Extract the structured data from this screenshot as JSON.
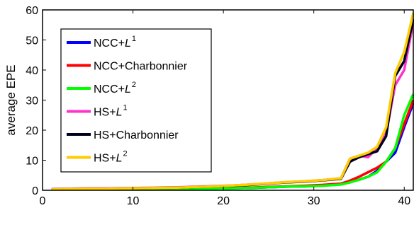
{
  "chart_data": {
    "type": "line",
    "title": "",
    "xlabel": "",
    "ylabel": "average EPE",
    "xlim": [
      0,
      41
    ],
    "ylim": [
      0,
      60
    ],
    "xticks": [
      0,
      10,
      20,
      30,
      40
    ],
    "yticks": [
      0,
      10,
      20,
      30,
      40,
      50,
      60
    ],
    "x_tick_labels": [
      "0",
      "10",
      "20",
      "30",
      "40"
    ],
    "y_tick_labels": [
      "0",
      "10",
      "20",
      "30",
      "40",
      "50",
      "60"
    ],
    "grid": false,
    "legend_position": "left",
    "series": [
      {
        "name": "NCC+L",
        "name_sup": "1",
        "name_italic": "L",
        "color": "#0000ff",
        "x": [
          1,
          3,
          5,
          7,
          9,
          11,
          13,
          15,
          17,
          19,
          21,
          23,
          25,
          27,
          29,
          31,
          33,
          34,
          35,
          36,
          37,
          38,
          39,
          40,
          41
        ],
        "y": [
          0.3,
          0.3,
          0.3,
          0.3,
          0.4,
          0.4,
          0.5,
          0.5,
          0.6,
          0.6,
          0.7,
          0.8,
          1.0,
          1.2,
          1.3,
          1.6,
          2.0,
          2.8,
          3.5,
          4.5,
          6.5,
          9.5,
          12.5,
          21,
          29
        ]
      },
      {
        "name": "NCC+Charbonnier",
        "name_sup": "",
        "name_italic": "",
        "color": "#ff0000",
        "x": [
          1,
          3,
          5,
          7,
          9,
          11,
          13,
          15,
          17,
          19,
          21,
          23,
          25,
          27,
          29,
          31,
          33,
          34,
          35,
          36,
          37,
          38,
          39,
          40,
          41
        ],
        "y": [
          0.3,
          0.3,
          0.3,
          0.3,
          0.4,
          0.4,
          0.5,
          0.5,
          0.6,
          0.7,
          0.8,
          0.9,
          1.1,
          1.3,
          1.5,
          1.8,
          2.2,
          3.2,
          4.5,
          6.0,
          7.5,
          9.5,
          14,
          22,
          30
        ]
      },
      {
        "name": "NCC+L",
        "name_sup": "2",
        "name_italic": "L",
        "color": "#00ff00",
        "x": [
          1,
          3,
          5,
          7,
          9,
          11,
          13,
          15,
          17,
          19,
          21,
          23,
          25,
          27,
          29,
          31,
          33,
          34,
          35,
          36,
          37,
          38,
          39,
          40,
          41
        ],
        "y": [
          0.3,
          0.3,
          0.3,
          0.3,
          0.4,
          0.4,
          0.5,
          0.5,
          0.6,
          0.6,
          0.7,
          0.8,
          1.0,
          1.2,
          1.3,
          1.5,
          1.9,
          2.6,
          3.5,
          4.5,
          6.0,
          9.5,
          14,
          25,
          32
        ]
      },
      {
        "name": "HS+L",
        "name_sup": "1",
        "name_italic": "L",
        "color": "#ff33cc",
        "x": [
          1,
          3,
          5,
          7,
          9,
          11,
          13,
          15,
          17,
          19,
          21,
          23,
          25,
          27,
          29,
          31,
          33,
          34,
          35,
          36,
          37,
          38,
          39,
          40,
          41
        ],
        "y": [
          0.4,
          0.5,
          0.6,
          0.6,
          0.7,
          0.8,
          0.9,
          1.0,
          1.2,
          1.4,
          1.6,
          1.9,
          2.3,
          2.7,
          3.0,
          3.4,
          4.0,
          10.5,
          11.5,
          11,
          14,
          19,
          35,
          40,
          56
        ]
      },
      {
        "name": "HS+Charbonnier",
        "name_sup": "",
        "name_italic": "",
        "color": "#000022",
        "x": [
          1,
          3,
          5,
          7,
          9,
          11,
          13,
          15,
          17,
          19,
          21,
          23,
          25,
          27,
          29,
          31,
          33,
          34,
          35,
          36,
          37,
          38,
          39,
          40,
          41
        ],
        "y": [
          0.3,
          0.4,
          0.5,
          0.5,
          0.6,
          0.7,
          0.8,
          0.9,
          1.1,
          1.3,
          1.5,
          1.8,
          2.2,
          2.6,
          2.9,
          3.3,
          3.8,
          9.5,
          11,
          12,
          13,
          18,
          38,
          43,
          57
        ]
      },
      {
        "name": "HS+L",
        "name_sup": "2",
        "name_italic": "L",
        "color": "#ffcc00",
        "x": [
          1,
          3,
          5,
          7,
          9,
          11,
          13,
          15,
          17,
          19,
          21,
          23,
          25,
          27,
          29,
          31,
          33,
          34,
          35,
          36,
          37,
          38,
          39,
          40,
          41
        ],
        "y": [
          0.3,
          0.4,
          0.5,
          0.5,
          0.6,
          0.7,
          0.8,
          0.9,
          1.1,
          1.3,
          1.6,
          1.9,
          2.3,
          2.7,
          3.0,
          3.4,
          4.0,
          10.5,
          11.5,
          12.5,
          14.5,
          21,
          39,
          46,
          59
        ]
      }
    ]
  }
}
